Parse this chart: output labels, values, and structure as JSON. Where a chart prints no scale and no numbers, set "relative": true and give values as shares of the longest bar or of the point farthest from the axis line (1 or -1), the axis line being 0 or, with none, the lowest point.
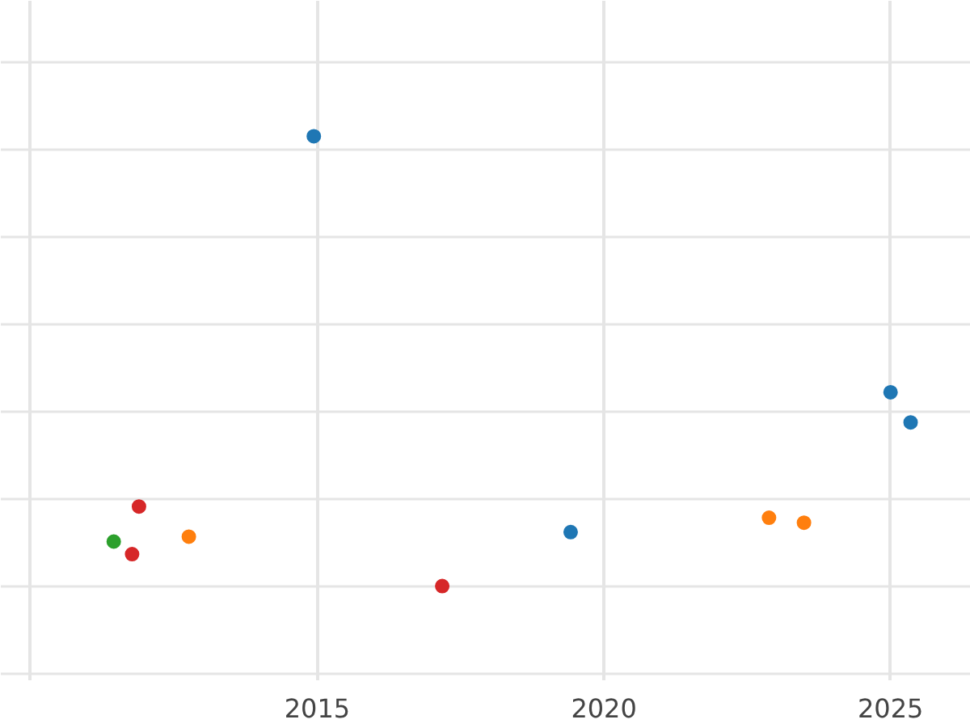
{
  "chart_data": {
    "type": "scatter",
    "relative": true,
    "marker": "circle",
    "grid": true,
    "xlim": [
      2009.48,
      2026.4
    ],
    "xticks": [
      {
        "value": 2010,
        "label": null
      },
      2015,
      2020,
      2025
    ],
    "series": [
      {
        "color": "#1f77b4",
        "x": [
          2014.94,
          2019.42,
          2025.0,
          2025.35
        ],
        "values": [
          1,
          0.12,
          0.431,
          0.364
        ]
      },
      {
        "color": "#ff7f0e",
        "x": [
          2012.76,
          2022.88,
          2023.49
        ],
        "values": [
          0.11,
          0.152,
          0.141
        ]
      },
      {
        "color": "#2ca02c",
        "x": [
          2011.45
        ],
        "values": [
          0.099
        ]
      },
      {
        "color": "#d62728",
        "x": [
          2011.89,
          2011.77,
          2017.18
        ],
        "values": [
          0.177,
          0.071,
          0
        ]
      }
    ]
  }
}
